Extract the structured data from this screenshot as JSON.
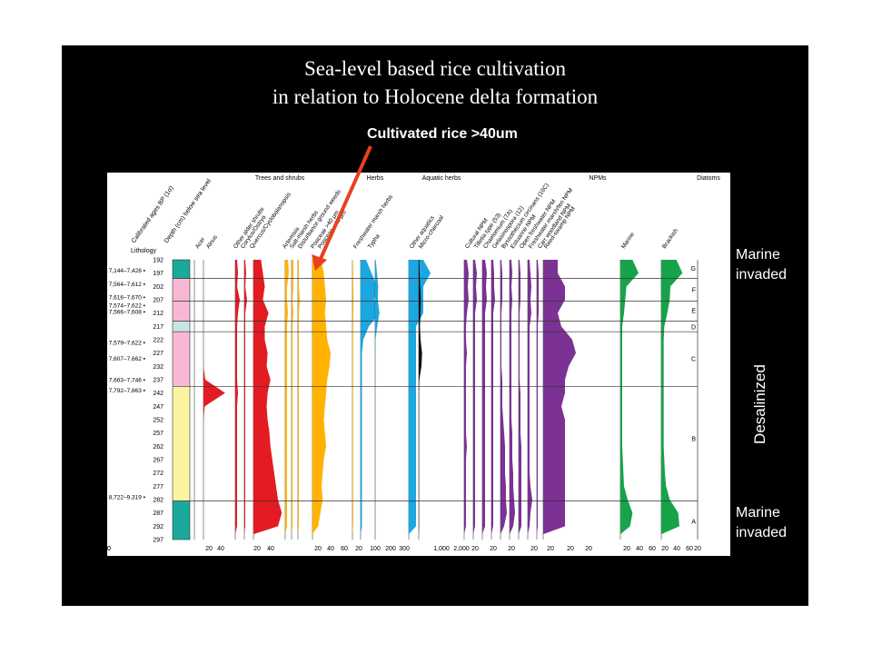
{
  "slide": {
    "title_lines": [
      "Sea-level based rice cultivation",
      "in relation to Holocene delta formation"
    ],
    "callout": "Cultivated rice >40um",
    "side_labels": {
      "top": [
        "Marine",
        "invaded"
      ],
      "middle": "Desalinized",
      "bottom": [
        "Marine",
        "invaded"
      ]
    }
  },
  "chart_data": {
    "type": "area",
    "depth_axis": {
      "label": "Depth (cm) below sea level",
      "ticks": [
        192,
        197,
        202,
        207,
        212,
        217,
        222,
        227,
        232,
        237,
        242,
        247,
        252,
        257,
        262,
        267,
        272,
        277,
        282,
        287,
        292,
        297
      ],
      "range": [
        192,
        297
      ]
    },
    "ages_label": "Calibrated ages BP (1σ)",
    "lithology_label": "Lithology",
    "ages": [
      {
        "label": "7,144–7,428",
        "depth": 196
      },
      {
        "label": "7,564–7,612",
        "depth": 201
      },
      {
        "label": "7,616–7,670",
        "depth": 206
      },
      {
        "label": "7,574–7,622",
        "depth": 209
      },
      {
        "label": "7,566–7,608",
        "depth": 211.5
      },
      {
        "label": "7,579–7,622",
        "depth": 223
      },
      {
        "label": "7,607–7,662",
        "depth": 229
      },
      {
        "label": "7,663–7,746",
        "depth": 237
      },
      {
        "label": "7,792–7,863",
        "depth": 241
      },
      {
        "label": "8,722–9,319",
        "depth": 281
      }
    ],
    "lithology": [
      {
        "from": 192,
        "to": 199,
        "color": "#1aa99a"
      },
      {
        "from": 199,
        "to": 215,
        "color": "#f6b8d4"
      },
      {
        "from": 215,
        "to": 219,
        "color": "#c8e4e4"
      },
      {
        "from": 219,
        "to": 239.5,
        "color": "#f6b8d4"
      },
      {
        "from": 239.5,
        "to": 282.5,
        "color": "#fbf3a0"
      },
      {
        "from": 282.5,
        "to": 297,
        "color": "#1aa99a"
      }
    ],
    "zone_boundaries": [
      199,
      207.5,
      215,
      219,
      239.5,
      282.5
    ],
    "zones": [
      {
        "label": "G",
        "depth": 195
      },
      {
        "label": "F",
        "depth": 203
      },
      {
        "label": "E",
        "depth": 211
      },
      {
        "label": "D",
        "depth": 217
      },
      {
        "label": "C",
        "depth": 229
      },
      {
        "label": "B",
        "depth": 259
      },
      {
        "label": "A",
        "depth": 290
      }
    ],
    "groups": [
      "Trees and shrubs",
      "Herbs",
      "Aquatic herbs",
      "NPMs",
      "Diatoms"
    ],
    "depths": [
      192,
      197,
      202,
      207,
      212,
      217,
      222,
      227,
      232,
      237,
      242,
      247,
      252,
      257,
      262,
      267,
      272,
      277,
      282,
      287,
      292,
      295
    ],
    "series": [
      {
        "name": "Acer",
        "color": "#e31b23",
        "max": 50,
        "values": [
          0,
          0,
          0,
          0,
          0,
          0,
          0,
          0,
          0,
          0,
          0,
          0,
          0,
          0,
          0,
          0,
          0,
          0,
          0,
          0,
          0,
          0
        ]
      },
      {
        "name": "Alnus",
        "color": "#e31b23",
        "max": 50,
        "values": [
          0,
          0,
          0,
          0,
          0,
          0,
          0,
          0,
          0,
          3,
          35,
          2,
          0,
          0,
          0,
          0,
          0,
          0,
          0,
          0,
          0,
          0
        ]
      },
      {
        "name": "Other alder shrubs",
        "color": "#e31b23",
        "max": 10,
        "values": [
          2,
          3,
          2,
          5,
          3,
          2,
          2,
          2,
          2,
          2,
          3,
          2,
          2,
          2,
          2,
          2,
          2,
          2,
          2,
          2,
          2,
          0
        ]
      },
      {
        "name": "Corylus/Ostrya",
        "color": "#e31b23",
        "max": 10,
        "values": [
          1,
          2,
          1,
          3,
          1,
          1,
          1,
          1,
          1,
          1,
          1,
          1,
          1,
          1,
          1,
          1,
          1,
          1,
          1,
          1,
          1,
          0
        ]
      },
      {
        "name": "Quercus/Cyclobalanopsis",
        "color": "#e31b23",
        "max": 50,
        "values": [
          8,
          10,
          12,
          10,
          16,
          12,
          12,
          15,
          14,
          18,
          15,
          14,
          15,
          17,
          18,
          20,
          22,
          24,
          26,
          30,
          26,
          0
        ]
      },
      {
        "name": "Artemisia",
        "color": "#ffb300",
        "max": 10,
        "values": [
          3,
          4,
          2,
          2,
          3,
          2,
          2,
          2,
          2,
          2,
          2,
          2,
          2,
          2,
          2,
          2,
          2,
          2,
          2,
          2,
          2,
          0
        ]
      },
      {
        "name": "Salt-marsh herbs",
        "color": "#ffb300",
        "max": 10,
        "values": [
          2,
          2,
          2,
          1,
          2,
          1,
          1,
          1,
          1,
          1,
          1,
          1,
          1,
          1,
          1,
          1,
          1,
          1,
          1,
          1,
          1,
          0
        ]
      },
      {
        "name": "Disturbance ground weeds",
        "color": "#ffb300",
        "max": 10,
        "values": [
          1,
          1,
          1,
          2,
          1,
          1,
          1,
          1,
          1,
          1,
          1,
          1,
          1,
          1,
          1,
          1,
          1,
          1,
          1,
          1,
          1,
          0
        ]
      },
      {
        "name": "Poaceae >40 μm",
        "color": "#ffb300",
        "max": 80,
        "values": [
          15,
          20,
          22,
          24,
          22,
          24,
          26,
          32,
          30,
          26,
          24,
          22,
          20,
          22,
          24,
          20,
          18,
          16,
          18,
          14,
          10,
          0
        ]
      },
      {
        "name": "Poaceae <40 μm",
        "color": "#ffb300",
        "max": 80,
        "values": [
          2,
          3,
          4,
          5,
          4,
          3,
          3,
          3,
          3,
          3,
          3,
          3,
          3,
          3,
          3,
          3,
          3,
          3,
          3,
          4,
          3,
          0
        ]
      },
      {
        "name": "Freshwater marsh herbs",
        "color": "#1ba7e1",
        "max": 30,
        "values": [
          4,
          8,
          12,
          10,
          14,
          6,
          2,
          1,
          1,
          1,
          1,
          1,
          1,
          1,
          1,
          1,
          1,
          1,
          1,
          1,
          1,
          0
        ]
      },
      {
        "name": "Typha",
        "color": "#1ba7e1",
        "max": 300,
        "values": [
          20,
          60,
          100,
          90,
          140,
          70,
          10,
          5,
          5,
          5,
          5,
          5,
          5,
          5,
          5,
          5,
          5,
          5,
          5,
          5,
          5,
          0
        ]
      },
      {
        "name": "Other aquatics",
        "color": "#1ba7e1",
        "max": 10,
        "values": [
          2,
          3,
          2,
          2,
          2,
          1,
          1,
          1,
          1,
          1,
          1,
          1,
          1,
          1,
          1,
          1,
          1,
          1,
          1,
          1,
          1,
          0
        ]
      },
      {
        "name": "Micro-charcoal",
        "color": "#111111",
        "max": 3000,
        "values": [
          200,
          300,
          500,
          700,
          600,
          400,
          600,
          1100,
          900,
          200,
          100,
          100,
          100,
          100,
          100,
          100,
          100,
          100,
          100,
          100,
          100,
          0
        ]
      },
      {
        "name": "Cultural NPM",
        "color": "#7b3294",
        "max": 10,
        "values": [
          3,
          5,
          4,
          5,
          3,
          2,
          2,
          3,
          2,
          2,
          2,
          2,
          2,
          2,
          3,
          2,
          2,
          2,
          2,
          2,
          2,
          0
        ]
      },
      {
        "name": "Tilletia type (53)",
        "color": "#7b3294",
        "max": 10,
        "values": [
          2,
          4,
          3,
          4,
          2,
          2,
          2,
          2,
          2,
          2,
          2,
          2,
          2,
          2,
          2,
          2,
          2,
          2,
          2,
          2,
          2,
          0
        ]
      },
      {
        "name": "Chaetomium (7A)",
        "color": "#7b3294",
        "max": 10,
        "values": [
          3,
          5,
          4,
          5,
          3,
          3,
          3,
          3,
          3,
          3,
          3,
          3,
          3,
          3,
          3,
          3,
          3,
          3,
          3,
          3,
          3,
          0
        ]
      },
      {
        "name": "Gelasinospora (12)",
        "color": "#7b3294",
        "max": 10,
        "values": [
          2,
          3,
          3,
          4,
          2,
          2,
          2,
          2,
          2,
          2,
          2,
          2,
          2,
          2,
          2,
          2,
          2,
          2,
          2,
          2,
          2,
          0
        ]
      },
      {
        "name": "Byssothecium circinans (16C)",
        "color": "#7b3294",
        "max": 10,
        "values": [
          1,
          2,
          2,
          2,
          1,
          1,
          1,
          1,
          1,
          2,
          2,
          2,
          3,
          4,
          5,
          5,
          5,
          6,
          6,
          7,
          4,
          0
        ]
      },
      {
        "name": "Estuarine NPM",
        "color": "#7b3294",
        "max": 10,
        "values": [
          2,
          3,
          2,
          3,
          2,
          2,
          2,
          2,
          2,
          2,
          2,
          2,
          2,
          3,
          3,
          3,
          4,
          4,
          5,
          6,
          4,
          0
        ]
      },
      {
        "name": "Open freshwater NPM",
        "color": "#7b3294",
        "max": 10,
        "values": [
          1,
          2,
          2,
          2,
          1,
          1,
          1,
          1,
          1,
          1,
          2,
          2,
          2,
          2,
          3,
          3,
          3,
          3,
          3,
          3,
          3,
          0
        ]
      },
      {
        "name": "Freshwater marsh/fen NPM",
        "color": "#7b3294",
        "max": 10,
        "values": [
          2,
          3,
          4,
          3,
          4,
          2,
          2,
          2,
          2,
          2,
          2,
          2,
          2,
          2,
          2,
          2,
          2,
          3,
          5,
          3,
          2,
          0
        ]
      },
      {
        "name": "Carr woodland NPM",
        "color": "#7b3294",
        "max": 10,
        "values": [
          1,
          2,
          2,
          2,
          2,
          1,
          1,
          1,
          1,
          1,
          1,
          1,
          1,
          1,
          1,
          1,
          1,
          1,
          1,
          1,
          1,
          0
        ]
      },
      {
        "name": "Reed-swamp NPM",
        "color": "#7b3294",
        "max": 10,
        "values": [
          4,
          4,
          6,
          6,
          4,
          5,
          8,
          9,
          7,
          6,
          6,
          5,
          6,
          6,
          6,
          6,
          6,
          6,
          6,
          6,
          6,
          0
        ]
      },
      {
        "name": "Marine",
        "color": "#16a34a",
        "max": 60,
        "values": [
          20,
          30,
          10,
          8,
          6,
          3,
          3,
          3,
          3,
          3,
          3,
          3,
          3,
          3,
          3,
          4,
          5,
          6,
          12,
          20,
          16,
          0
        ]
      },
      {
        "name": "Brackish",
        "color": "#16a34a",
        "max": 60,
        "values": [
          25,
          35,
          15,
          14,
          10,
          5,
          4,
          4,
          4,
          4,
          4,
          4,
          4,
          4,
          4,
          5,
          6,
          8,
          14,
          28,
          30,
          0
        ]
      }
    ],
    "axis_tick_groups": [
      {
        "labels": [
          "20",
          "40"
        ]
      },
      {
        "labels": [
          "20",
          "40"
        ]
      },
      {
        "labels": [
          "20",
          "40",
          "60"
        ]
      },
      {
        "labels": [
          "20"
        ]
      },
      {
        "labels": [
          "100",
          "200",
          "300"
        ]
      },
      {
        "labels": [
          "1,000",
          "2,000"
        ]
      },
      {
        "labels": [
          "20"
        ]
      },
      {
        "labels": [
          "20"
        ]
      },
      {
        "labels": [
          "20"
        ]
      },
      {
        "labels": [
          "20"
        ]
      },
      {
        "labels": [
          "20"
        ]
      },
      {
        "labels": [
          "20"
        ]
      },
      {
        "labels": [
          "20"
        ]
      },
      {
        "labels": [
          "20",
          "40",
          "60"
        ]
      },
      {
        "labels": [
          "20",
          "40",
          "60"
        ]
      },
      {
        "labels": [
          "20",
          "40",
          "60"
        ]
      }
    ]
  }
}
